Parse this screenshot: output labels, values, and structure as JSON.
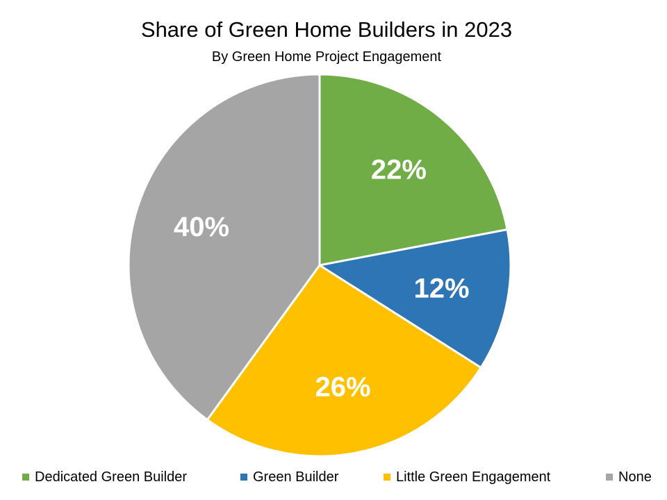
{
  "chart_data": {
    "type": "pie",
    "title": "Share of Green Home Builders in 2023",
    "subtitle": "By Green Home Project Engagement",
    "legend_position": "bottom",
    "slices": [
      {
        "name": "Dedicated Green Builder",
        "value": 22,
        "label": "22%",
        "color": "#70AD47"
      },
      {
        "name": "Green Builder",
        "value": 12,
        "label": "12%",
        "color": "#2E75B6"
      },
      {
        "name": "Little Green Engagement",
        "value": 26,
        "label": "26%",
        "color": "#FFC000"
      },
      {
        "name": "None",
        "value": 40,
        "label": "40%",
        "color": "#A5A5A5"
      }
    ]
  }
}
